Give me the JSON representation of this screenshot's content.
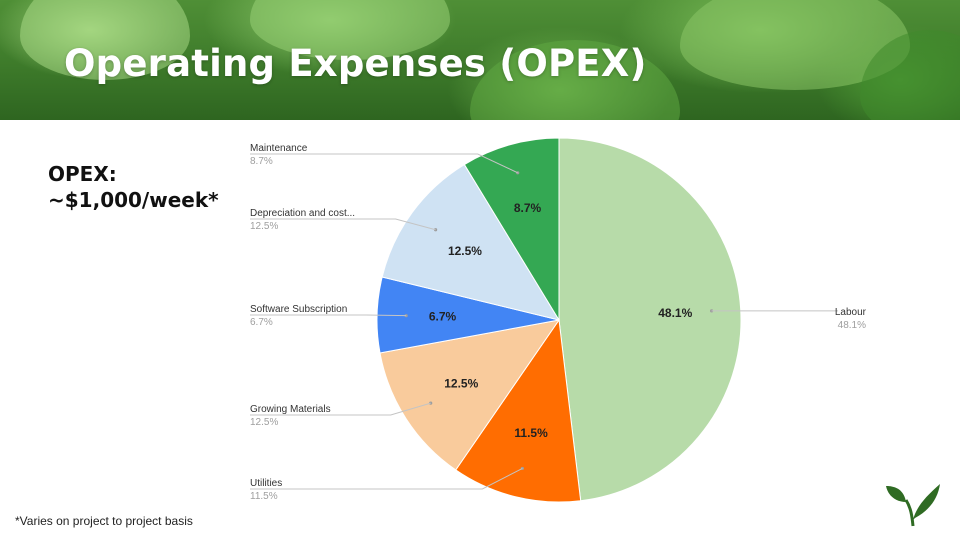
{
  "slide": {
    "title": "Operating Expenses (OPEX)",
    "opex_line1": "OPEX:",
    "opex_line2": "~$1,000/week*",
    "footnote": "*Varies on project to project basis"
  },
  "colors": {
    "title_text": "#ffffff",
    "banner_green": "#3d7a2a",
    "logo_green": "#2f6b23"
  },
  "chart_data": {
    "type": "pie",
    "title": "",
    "start_angle_deg": 0,
    "direction": "clockwise",
    "legend": "none",
    "slices": [
      {
        "label": "Labour",
        "value": 48.1,
        "display": "48.1%",
        "color": "#b7dba9",
        "label_side": "right"
      },
      {
        "label": "Utilities",
        "value": 11.5,
        "display": "11.5%",
        "color": "#ff6d01",
        "label_side": "left"
      },
      {
        "label": "Growing Materials",
        "value": 12.5,
        "display": "12.5%",
        "color": "#f9cb9c",
        "label_side": "left"
      },
      {
        "label": "Software Subscription",
        "value": 6.7,
        "display": "6.7%",
        "color": "#4285f4",
        "label_side": "left"
      },
      {
        "label": "Depreciation and cost...",
        "value": 12.5,
        "display": "12.5%",
        "color": "#cfe2f3",
        "label_side": "left"
      },
      {
        "label": "Maintenance",
        "value": 8.7,
        "display": "8.7%",
        "color": "#34a853",
        "label_side": "left"
      }
    ]
  }
}
